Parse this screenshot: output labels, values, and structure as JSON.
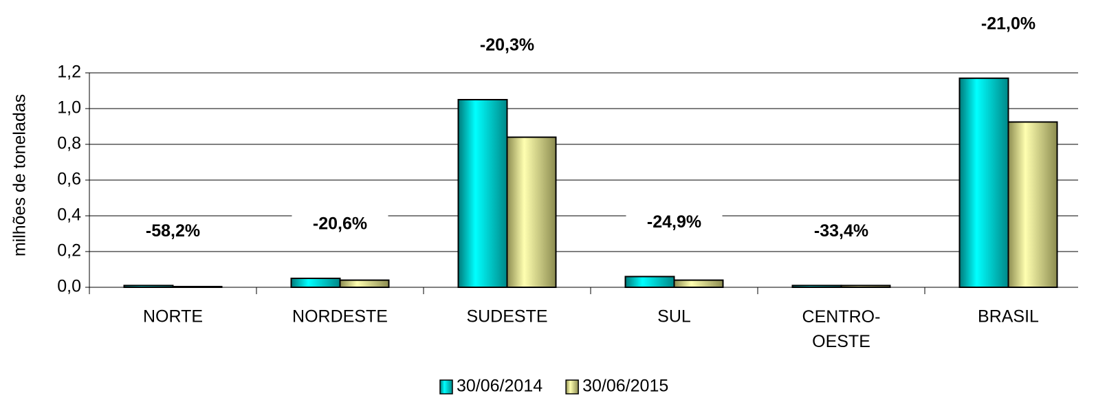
{
  "chart_data": {
    "type": "bar",
    "y_label": "milhões de toneladas",
    "categories": [
      "NORTE",
      "NORDESTE",
      "SUDESTE",
      "SUL",
      "CENTRO-OESTE",
      "BRASIL"
    ],
    "series": [
      {
        "name": "30/06/2014",
        "color": "#00c8c8",
        "values": [
          0.01,
          0.05,
          1.05,
          0.06,
          0.01,
          1.17
        ]
      },
      {
        "name": "30/06/2015",
        "color": "#e6e68c",
        "values": [
          0.004,
          0.04,
          0.84,
          0.04,
          0.01,
          0.925
        ]
      }
    ],
    "annotations": [
      "-58,2%",
      "-20,6%",
      "-20,3%",
      "-24,9%",
      "-33,4%",
      "-21,0%"
    ],
    "ylim": [
      0,
      1.2
    ],
    "yticks": [
      {
        "value": 0,
        "label": "0,0"
      },
      {
        "value": 0.2,
        "label": "0,2"
      },
      {
        "value": 0.4,
        "label": "0,4"
      },
      {
        "value": 0.6,
        "label": "0,6"
      },
      {
        "value": 0.8,
        "label": "0,8"
      },
      {
        "value": 1.0,
        "label": "1,0"
      },
      {
        "value": 1.2,
        "label": "1,2"
      }
    ],
    "grid": true,
    "legend": "bottom"
  }
}
